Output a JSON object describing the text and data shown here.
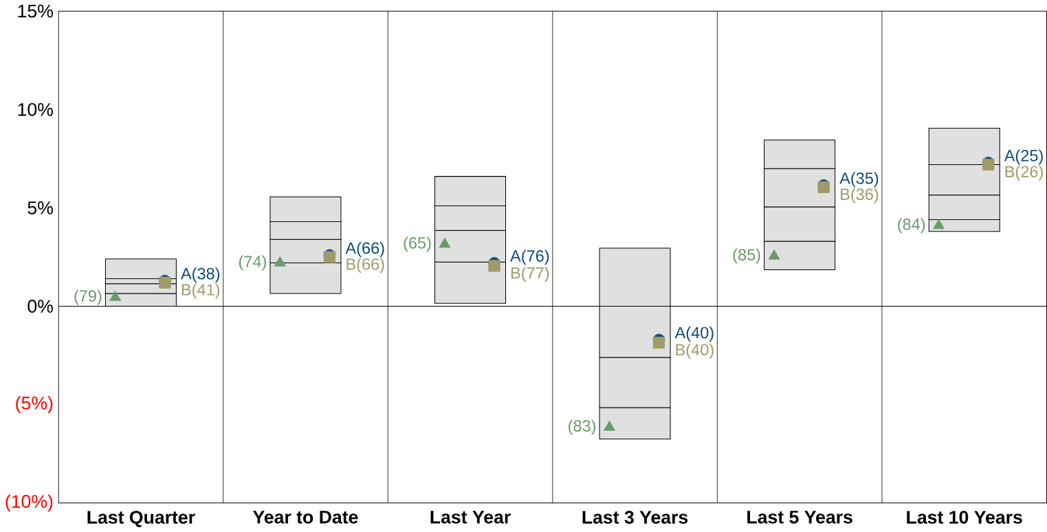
{
  "chart_data": {
    "type": "bar",
    "categories": [
      "Last Quarter",
      "Year to Date",
      "Last Year",
      "Last 3 Years",
      "Last 5 Years",
      "Last 10 Years"
    ],
    "series": [
      {
        "color": "#e0e0e0",
        "base": [
          0.0,
          0.65,
          0.15,
          -6.75,
          1.85,
          3.8
        ],
        "values": [
          0.65,
          1.55,
          2.1,
          1.6,
          1.45,
          0.6
        ]
      },
      {
        "color": "#e0e0e0",
        "base": [
          0.65,
          2.2,
          2.25,
          -5.15,
          3.3,
          4.4
        ],
        "values": [
          0.5,
          1.2,
          1.6,
          2.55,
          1.75,
          1.25
        ]
      },
      {
        "color": "#e0e0e0",
        "base": [
          1.15,
          3.4,
          3.85,
          -2.6,
          5.05,
          5.65
        ],
        "values": [
          0.25,
          0.9,
          1.25,
          2.6,
          1.95,
          1.55
        ]
      },
      {
        "color": "#e0e0e0",
        "base": [
          1.4,
          4.3,
          5.1,
          0.0,
          7.0,
          7.2
        ],
        "values": [
          1.0,
          1.26,
          1.5,
          2.95,
          1.45,
          1.85
        ]
      },
      {
        "type": "scatter",
        "marker": "triangle",
        "color": "#6a9a6a",
        "x": [
          "Last Quarter",
          "Year to Date",
          "Last Year",
          "Last 3 Years",
          "Last 5 Years",
          "Last 10 Years"
        ],
        "values": [
          0.45,
          2.2,
          3.15,
          -6.15,
          2.55,
          4.1
        ]
      },
      {
        "type": "scatter",
        "marker": "circle",
        "color": "#0f4c7c",
        "x": [
          "Last Quarter",
          "Year to Date",
          "Last Year",
          "Last 3 Years",
          "Last 5 Years",
          "Last 10 Years"
        ],
        "values": [
          1.3,
          2.6,
          2.2,
          -1.7,
          6.15,
          7.3
        ],
        "value_labels": [
          "A(38)",
          "A(66)",
          "A(76)",
          "A(40)",
          "A(35)",
          "A(25)"
        ]
      },
      {
        "type": "scatter",
        "marker": "square",
        "color": "#a09a6a",
        "x": [
          "Last Quarter",
          "Year to Date",
          "Last Year",
          "Last 3 Years",
          "Last 5 Years",
          "Last 10 Years"
        ],
        "values": [
          1.2,
          2.5,
          2.05,
          -1.85,
          6.05,
          7.2
        ],
        "value_labels": [
          "B(41)",
          "B(66)",
          "B(77)",
          "B(40)",
          "B(36)",
          "B(26)"
        ]
      }
    ],
    "annotations": [
      "(79)",
      "(74)",
      "(65)",
      "(83)",
      "(85)",
      "(84)"
    ],
    "ylim": [
      -10,
      15
    ],
    "yticks": [
      {
        "value": 15,
        "label": "15%"
      },
      {
        "value": 10,
        "label": "10%"
      },
      {
        "value": 5,
        "label": "5%"
      },
      {
        "value": 0,
        "label": "0%"
      },
      {
        "value": -5,
        "label": "(5%)"
      },
      {
        "value": -10,
        "label": "(10%)"
      }
    ],
    "ref_lines": [
      {
        "axis": "y",
        "value": 0,
        "color": "#000000"
      }
    ]
  }
}
